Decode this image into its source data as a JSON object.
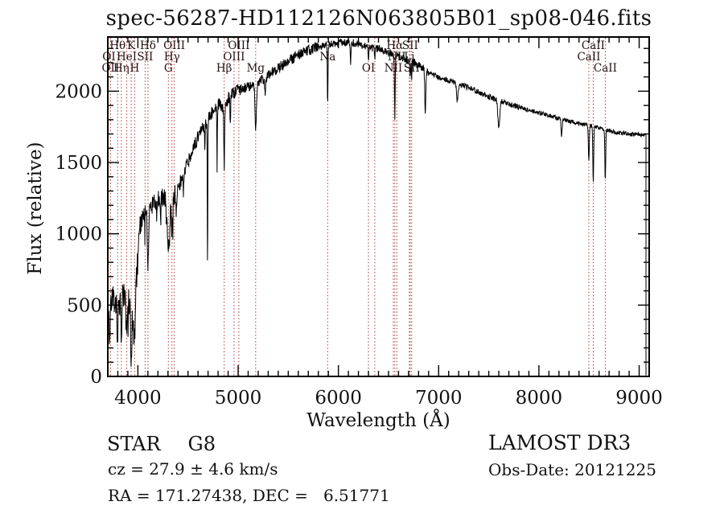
{
  "title": "spec-56287-HD112126N063805B01_sp08-046.fits",
  "annotations": {
    "class_label": "STAR",
    "subclass": "G8",
    "cz_line": "cz = 27.9 ± 4.6 km/s",
    "radec_line": "RA = 171.27438, DEC =   6.51771",
    "survey": "LAMOST DR3",
    "obs_date_line": "Obs-Date: 20121225"
  },
  "colors": {
    "background": "#ffffff",
    "frame": "#000000",
    "spectrum": "#000000",
    "line_marker": "#a83a3a",
    "line_label": "#241111",
    "text": "#111111"
  },
  "chart_data": {
    "type": "line",
    "title": "spec-56287-HD112126N063805B01_sp08-046.fits",
    "xlabel": "Wavelength (Å)",
    "ylabel": "Flux (relative)",
    "xlim": [
      3700,
      9100
    ],
    "ylim": [
      0,
      2380
    ],
    "xticks": [
      4000,
      5000,
      6000,
      7000,
      8000,
      9000
    ],
    "yticks": [
      0,
      500,
      1000,
      1500,
      2000
    ],
    "x_minor_step": 100,
    "y_minor_step": 100,
    "grid": false,
    "legend": "none",
    "spectral_lines": [
      {
        "label": "OI",
        "row": 2,
        "wavelength": 3712,
        "marker": false
      },
      {
        "label": "OII",
        "row": 3,
        "wavelength": 3727,
        "marker": true
      },
      {
        "label": "Hθ",
        "row": 1,
        "wavelength": 3798,
        "marker": true
      },
      {
        "label": "Hη",
        "row": 3,
        "wavelength": 3835,
        "marker": true
      },
      {
        "label": "HeI",
        "row": 2,
        "wavelength": 3889,
        "marker": true
      },
      {
        "label": "K",
        "row": 1,
        "wavelength": 3933,
        "marker": true
      },
      {
        "label": "H",
        "row": 3,
        "wavelength": 3968,
        "marker": true
      },
      {
        "label": "SII",
        "row": 2,
        "wavelength": 4072,
        "marker": true
      },
      {
        "label": "Hδ",
        "row": 1,
        "wavelength": 4101,
        "marker": true
      },
      {
        "label": "G",
        "row": 3,
        "wavelength": 4304,
        "marker": true
      },
      {
        "label": "Hγ",
        "row": 2,
        "wavelength": 4340,
        "marker": true
      },
      {
        "label": "OIII",
        "row": 1,
        "wavelength": 4363,
        "marker": true
      },
      {
        "label": "Hβ",
        "row": 3,
        "wavelength": 4861,
        "marker": true
      },
      {
        "label": "OIII",
        "row": 2,
        "wavelength": 4959,
        "marker": true
      },
      {
        "label": "OIII",
        "row": 1,
        "wavelength": 5007,
        "marker": true
      },
      {
        "label": "Mg",
        "row": 3,
        "wavelength": 5175,
        "marker": true
      },
      {
        "label": "Na",
        "row": 2,
        "wavelength": 5893,
        "marker": true
      },
      {
        "label": "OI",
        "row": 3,
        "wavelength": 6300,
        "marker": true
      },
      {
        "label": "",
        "row": 0,
        "wavelength": 6363,
        "marker": true
      },
      {
        "label": "NII",
        "row": 3,
        "wavelength": 6548,
        "marker": true
      },
      {
        "label": "Hα",
        "row": 1,
        "wavelength": 6563,
        "marker": true
      },
      {
        "label": "NII",
        "row": 2,
        "wavelength": 6583,
        "marker": true
      },
      {
        "label": "Li",
        "row": 2,
        "wavelength": 6708,
        "marker": true
      },
      {
        "label": "SII",
        "row": 1,
        "wavelength": 6716,
        "marker": true
      },
      {
        "label": "SII",
        "row": 3,
        "wavelength": 6731,
        "marker": true
      },
      {
        "label": "CaII",
        "row": 2,
        "wavelength": 8498,
        "marker": true
      },
      {
        "label": "CaII",
        "row": 1,
        "wavelength": 8542,
        "marker": true
      },
      {
        "label": "CaII",
        "row": 3,
        "wavelength": 8662,
        "marker": true
      }
    ],
    "continuum": [
      [
        3700,
        60
      ],
      [
        3706,
        380
      ],
      [
        3716,
        300
      ],
      [
        3730,
        480
      ],
      [
        3762,
        560
      ],
      [
        3800,
        525
      ],
      [
        3850,
        560
      ],
      [
        3905,
        545
      ],
      [
        3940,
        430
      ],
      [
        3970,
        520
      ],
      [
        3995,
        760
      ],
      [
        4020,
        1060
      ],
      [
        4060,
        1130
      ],
      [
        4120,
        1185
      ],
      [
        4200,
        1235
      ],
      [
        4262,
        1270
      ],
      [
        4312,
        1195
      ],
      [
        4355,
        1260
      ],
      [
        4400,
        1320
      ],
      [
        4500,
        1500
      ],
      [
        4600,
        1680
      ],
      [
        4720,
        1830
      ],
      [
        4800,
        1905
      ],
      [
        4860,
        1890
      ],
      [
        4900,
        1950
      ],
      [
        5000,
        2005
      ],
      [
        5100,
        2030
      ],
      [
        5200,
        2060
      ],
      [
        5300,
        2110
      ],
      [
        5400,
        2160
      ],
      [
        5500,
        2210
      ],
      [
        5600,
        2255
      ],
      [
        5700,
        2290
      ],
      [
        5800,
        2310
      ],
      [
        5900,
        2325
      ],
      [
        6000,
        2340
      ],
      [
        6100,
        2345
      ],
      [
        6200,
        2330
      ],
      [
        6300,
        2310
      ],
      [
        6400,
        2295
      ],
      [
        6500,
        2270
      ],
      [
        6600,
        2245
      ],
      [
        6700,
        2220
      ],
      [
        6800,
        2185
      ],
      [
        6900,
        2130
      ],
      [
        7000,
        2100
      ],
      [
        7100,
        2075
      ],
      [
        7200,
        2050
      ],
      [
        7350,
        2010
      ],
      [
        7500,
        1960
      ],
      [
        7700,
        1910
      ],
      [
        7900,
        1868
      ],
      [
        8100,
        1830
      ],
      [
        8300,
        1790
      ],
      [
        8500,
        1762
      ],
      [
        8700,
        1720
      ],
      [
        8900,
        1700
      ],
      [
        9068,
        1690
      ]
    ],
    "absorption_features": [
      [
        3798,
        200,
        14
      ],
      [
        3835,
        240,
        14
      ],
      [
        3889,
        280,
        14
      ],
      [
        3933,
        280,
        16
      ],
      [
        3968,
        250,
        16
      ],
      [
        4101,
        400,
        15
      ],
      [
        4226,
        180,
        10
      ],
      [
        4304,
        320,
        26
      ],
      [
        4340,
        220,
        14
      ],
      [
        4383,
        170,
        10
      ],
      [
        4455,
        130,
        10
      ],
      [
        4668,
        150,
        8
      ],
      [
        4695,
        1060,
        6
      ],
      [
        4790,
        420,
        6
      ],
      [
        4861,
        430,
        9
      ],
      [
        4922,
        230,
        7
      ],
      [
        5175,
        330,
        16
      ],
      [
        5270,
        150,
        10
      ],
      [
        5893,
        430,
        8
      ],
      [
        6122,
        150,
        8
      ],
      [
        6300,
        110,
        8
      ],
      [
        6363,
        70,
        8
      ],
      [
        6563,
        460,
        8
      ],
      [
        6716,
        130,
        7
      ],
      [
        6731,
        120,
        7
      ],
      [
        6867,
        300,
        12
      ],
      [
        7186,
        120,
        18
      ],
      [
        7600,
        190,
        22
      ],
      [
        8227,
        120,
        12
      ],
      [
        8498,
        260,
        10
      ],
      [
        8542,
        390,
        10
      ],
      [
        8662,
        350,
        10
      ]
    ],
    "noise_zones": [
      [
        4000,
        115
      ],
      [
        4420,
        70
      ],
      [
        5000,
        48
      ],
      [
        5800,
        38
      ],
      [
        6900,
        28
      ],
      [
        7800,
        20
      ],
      [
        9100,
        15
      ]
    ],
    "seed": 20121225,
    "spectrum_range": [
      3701,
      9068
    ]
  }
}
